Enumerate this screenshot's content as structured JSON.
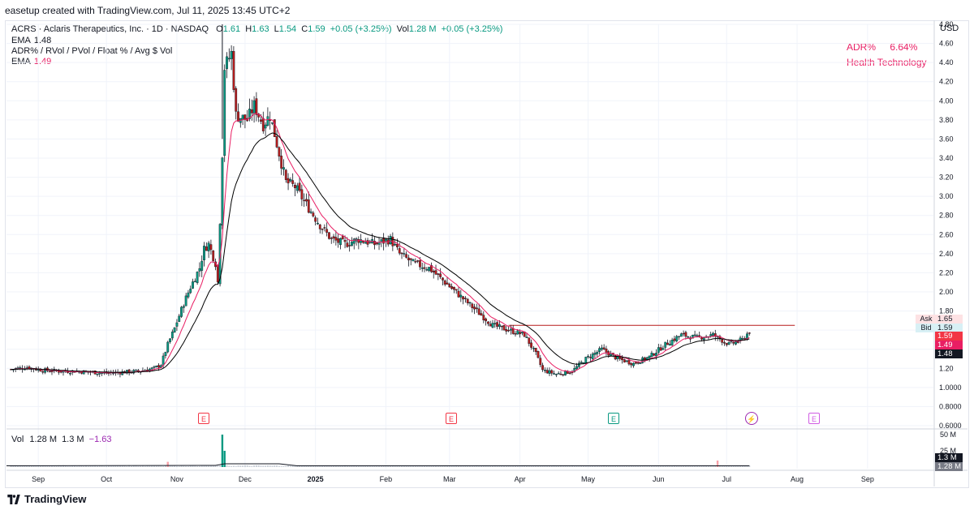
{
  "header": {
    "created_by": "easetup created with TradingView.com, Jul 11, 2025 13:45 UTC+2"
  },
  "symbol_line": {
    "title": "ACRS · Aclaris Therapeutics, Inc. · 1D · NASDAQ",
    "o_label": "O",
    "o": "1.61",
    "h_label": "H",
    "h": "1.63",
    "l_label": "L",
    "l": "1.54",
    "c_label": "C",
    "c": "1.59",
    "change": "+0.05 (+3.25%)",
    "vol_label": "Vol",
    "vol": "1.28 M",
    "vol_change": "+0.05 (+3.25%)"
  },
  "ema1": {
    "label": "EMA",
    "value": "1.48"
  },
  "indicator": {
    "label": "ADR% / RVol / PVol / Float % / Avg $ Vol"
  },
  "ema2": {
    "label": "EMA",
    "value": "1.49"
  },
  "info_box": {
    "adr_label": "ADR%",
    "adr_value": "6.64%",
    "sector": "Health Technology"
  },
  "currency": "USD",
  "badges": {
    "ask_label": "Ask",
    "ask": "1.65",
    "bid_label": "Bid",
    "bid": "1.59",
    "last": "1.59",
    "ema_pink": "1.49",
    "ema_black": "1.48"
  },
  "volume_pane": {
    "label": "Vol",
    "v1": "1.28 M",
    "v2": "1.3 M",
    "v3": "−1.63",
    "ticks": [
      "50 M",
      "25 M"
    ],
    "badge1": "1.3 M",
    "badge2": "1.28 M"
  },
  "earnings_markers": [
    "E",
    "E",
    "E",
    "E"
  ],
  "dividend_marker": "⚡",
  "footer": {
    "brand": "TradingView"
  },
  "chart_data": {
    "type": "candlestick",
    "y_axis": {
      "label": "USD",
      "min": 0.6,
      "max": 4.8,
      "ticks": [
        "0.6000",
        "0.8000",
        "1.0000",
        "1.20",
        "1.40",
        "1.60",
        "1.80",
        "2.00",
        "2.20",
        "2.40",
        "2.60",
        "2.80",
        "3.00",
        "3.20",
        "3.40",
        "3.60",
        "3.80",
        "4.00",
        "4.20",
        "4.40",
        "4.60",
        "4.80"
      ]
    },
    "x_axis": {
      "ticks": [
        "Sep",
        "Oct",
        "Nov",
        "Dec",
        "2025",
        "Feb",
        "Mar",
        "Apr",
        "May",
        "Jun",
        "Jul",
        "Aug",
        "Sep"
      ]
    },
    "horizontal_line": {
      "value": 1.65,
      "from": "2025-03-27",
      "to": "2025-07-31"
    },
    "closes": [
      [
        "2024-08-20",
        1.19
      ],
      [
        "2024-08-27",
        1.21
      ],
      [
        "2024-09-03",
        1.18
      ],
      [
        "2024-09-10",
        1.17
      ],
      [
        "2024-09-17",
        1.17
      ],
      [
        "2024-09-24",
        1.16
      ],
      [
        "2024-10-01",
        1.15
      ],
      [
        "2024-10-08",
        1.16
      ],
      [
        "2024-10-15",
        1.17
      ],
      [
        "2024-10-22",
        1.2
      ],
      [
        "2024-10-25",
        1.24
      ],
      [
        "2024-10-28",
        1.45
      ],
      [
        "2024-10-31",
        1.62
      ],
      [
        "2024-11-04",
        1.88
      ],
      [
        "2024-11-07",
        2.05
      ],
      [
        "2024-11-11",
        2.25
      ],
      [
        "2024-11-13",
        2.45
      ],
      [
        "2024-11-15",
        2.5
      ],
      [
        "2024-11-18",
        2.3
      ],
      [
        "2024-11-19",
        2.1
      ],
      [
        "2024-11-20",
        2.75
      ],
      [
        "2024-11-21",
        3.45
      ],
      [
        "2024-11-22",
        4.35
      ],
      [
        "2024-11-25",
        4.5
      ],
      [
        "2024-11-27",
        3.85
      ],
      [
        "2024-12-02",
        3.8
      ],
      [
        "2024-12-05",
        3.95
      ],
      [
        "2024-12-09",
        3.75
      ],
      [
        "2024-12-12",
        3.85
      ],
      [
        "2024-12-16",
        3.45
      ],
      [
        "2024-12-19",
        3.15
      ],
      [
        "2024-12-23",
        3.1
      ],
      [
        "2024-12-27",
        2.95
      ],
      [
        "2025-01-03",
        2.7
      ],
      [
        "2025-01-08",
        2.55
      ],
      [
        "2025-01-14",
        2.5
      ],
      [
        "2025-01-20",
        2.55
      ],
      [
        "2025-01-27",
        2.5
      ],
      [
        "2025-02-03",
        2.55
      ],
      [
        "2025-02-07",
        2.4
      ],
      [
        "2025-02-13",
        2.3
      ],
      [
        "2025-02-20",
        2.25
      ],
      [
        "2025-02-27",
        2.1
      ],
      [
        "2025-03-06",
        1.95
      ],
      [
        "2025-03-13",
        1.8
      ],
      [
        "2025-03-20",
        1.65
      ],
      [
        "2025-03-27",
        1.6
      ],
      [
        "2025-04-03",
        1.55
      ],
      [
        "2025-04-08",
        1.35
      ],
      [
        "2025-04-11",
        1.18
      ],
      [
        "2025-04-17",
        1.14
      ],
      [
        "2025-04-24",
        1.17
      ],
      [
        "2025-04-30",
        1.3
      ],
      [
        "2025-05-07",
        1.4
      ],
      [
        "2025-05-14",
        1.3
      ],
      [
        "2025-05-21",
        1.25
      ],
      [
        "2025-05-28",
        1.32
      ],
      [
        "2025-06-04",
        1.45
      ],
      [
        "2025-06-11",
        1.55
      ],
      [
        "2025-06-18",
        1.52
      ],
      [
        "2025-06-25",
        1.55
      ],
      [
        "2025-07-02",
        1.45
      ],
      [
        "2025-07-08",
        1.5
      ],
      [
        "2025-07-11",
        1.59
      ]
    ],
    "series": [
      {
        "name": "EMA",
        "color": "#e91e63",
        "last": 1.49
      },
      {
        "name": "EMA",
        "color": "#000000",
        "last": 1.48
      }
    ],
    "volume_spikes": [
      [
        "2024-10-28",
        8
      ],
      [
        "2024-11-21",
        50
      ],
      [
        "2024-11-22",
        25
      ],
      [
        "2025-06-27",
        10
      ]
    ],
    "colors": {
      "up": "#089981",
      "down": "#b71c1c",
      "hline": "#b71c1c"
    }
  }
}
